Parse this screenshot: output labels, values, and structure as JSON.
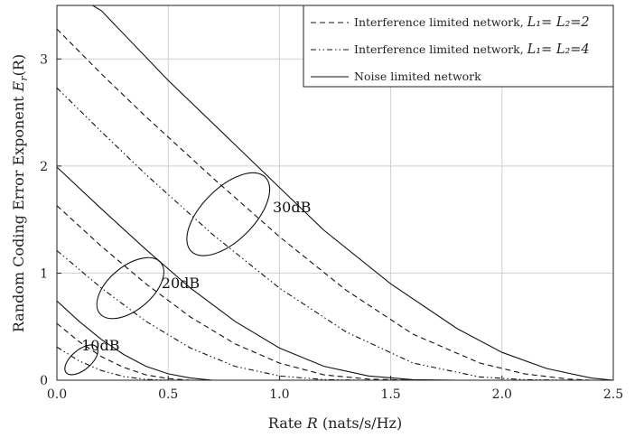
{
  "chart_data": {
    "type": "line",
    "xlabel_prefix": "Rate ",
    "xlabel_var": "R",
    "xlabel_suffix": " (nats/s/Hz)",
    "ylabel_prefix": "Random Coding Error Exponent ",
    "ylabel_var": "E",
    "ylabel_sub": "r",
    "ylabel_suffix": "(R)",
    "xlim": [
      0,
      2.5
    ],
    "ylim": [
      0,
      3.5
    ],
    "x_ticks": [
      "0.0",
      "0.5",
      "1.0",
      "1.5",
      "2.0",
      "2.5"
    ],
    "y_ticks": [
      "0",
      "1",
      "2",
      "3"
    ],
    "grid": true,
    "legend_position": "top-right",
    "legend": [
      {
        "style": "dashed",
        "text": "Interference limited network, ",
        "math": "L₁= L₂=2"
      },
      {
        "style": "dash-dot-dot",
        "text": "Interference limited network, ",
        "math": "L₁= L₂=4"
      },
      {
        "style": "solid",
        "text": "Noise limited network",
        "math": ""
      }
    ],
    "annotations": [
      {
        "text": "10dB",
        "x": 0.11,
        "y": 0.28
      },
      {
        "text": "20dB",
        "x": 0.47,
        "y": 0.86
      },
      {
        "text": "30dB",
        "x": 0.97,
        "y": 1.57
      }
    ],
    "series": [
      {
        "style": "solid",
        "snr": "30dB",
        "x": [
          0.0,
          0.2,
          0.5,
          0.8,
          1.0,
          1.2,
          1.5,
          1.8,
          2.0,
          2.2,
          2.4,
          2.5
        ],
        "y": [
          3.7,
          3.45,
          2.8,
          2.2,
          1.8,
          1.4,
          0.9,
          0.48,
          0.26,
          0.11,
          0.02,
          0.0
        ]
      },
      {
        "style": "dashed",
        "snr": "30dB",
        "x": [
          0.0,
          0.2,
          0.4,
          0.7,
          1.0,
          1.3,
          1.6,
          1.9,
          2.1,
          2.3,
          2.4
        ],
        "y": [
          3.28,
          2.86,
          2.46,
          1.89,
          1.34,
          0.84,
          0.43,
          0.16,
          0.06,
          0.01,
          0.0
        ]
      },
      {
        "style": "dash-dot-dot",
        "snr": "30dB",
        "x": [
          0.0,
          0.2,
          0.4,
          0.7,
          1.0,
          1.3,
          1.6,
          1.9,
          2.1,
          2.3
        ],
        "y": [
          2.73,
          2.32,
          1.92,
          1.36,
          0.86,
          0.45,
          0.16,
          0.03,
          0.005,
          0.0
        ]
      },
      {
        "style": "solid",
        "snr": "20dB",
        "x": [
          0.0,
          0.2,
          0.4,
          0.6,
          0.8,
          1.0,
          1.2,
          1.4,
          1.6,
          1.8
        ],
        "y": [
          1.99,
          1.6,
          1.22,
          0.86,
          0.55,
          0.3,
          0.13,
          0.04,
          0.005,
          0.0
        ]
      },
      {
        "style": "dashed",
        "snr": "20dB",
        "x": [
          0.0,
          0.2,
          0.4,
          0.6,
          0.8,
          1.0,
          1.2,
          1.4,
          1.6
        ],
        "y": [
          1.63,
          1.25,
          0.9,
          0.59,
          0.34,
          0.16,
          0.05,
          0.01,
          0.0
        ]
      },
      {
        "style": "dash-dot-dot",
        "snr": "20dB",
        "x": [
          0.0,
          0.2,
          0.4,
          0.6,
          0.8,
          1.0,
          1.2,
          1.4
        ],
        "y": [
          1.21,
          0.86,
          0.55,
          0.3,
          0.13,
          0.04,
          0.005,
          0.0
        ]
      },
      {
        "style": "solid",
        "snr": "10dB",
        "x": [
          0.0,
          0.1,
          0.2,
          0.3,
          0.4,
          0.5,
          0.6,
          0.7
        ],
        "y": [
          0.74,
          0.55,
          0.38,
          0.24,
          0.13,
          0.06,
          0.02,
          0.0
        ]
      },
      {
        "style": "dashed",
        "snr": "10dB",
        "x": [
          0.0,
          0.1,
          0.2,
          0.3,
          0.4,
          0.5,
          0.6
        ],
        "y": [
          0.53,
          0.36,
          0.22,
          0.12,
          0.05,
          0.015,
          0.0
        ]
      },
      {
        "style": "dash-dot-dot",
        "snr": "10dB",
        "x": [
          0.0,
          0.1,
          0.2,
          0.3,
          0.4,
          0.5
        ],
        "y": [
          0.31,
          0.18,
          0.09,
          0.035,
          0.008,
          0.0
        ]
      }
    ]
  }
}
